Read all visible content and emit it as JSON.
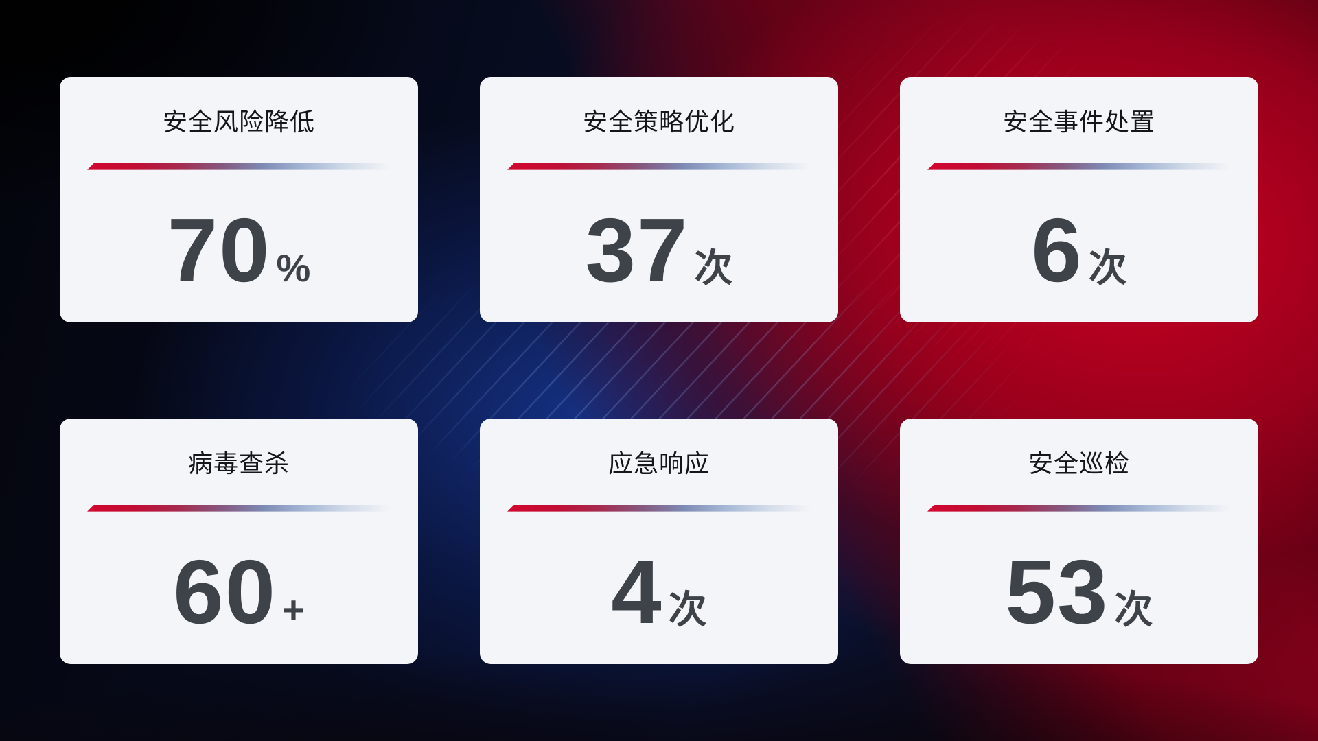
{
  "cards": [
    {
      "title": "安全风险降低",
      "value": "70",
      "unit": "%"
    },
    {
      "title": "安全策略优化",
      "value": "37",
      "unit": "次"
    },
    {
      "title": "安全事件处置",
      "value": "6",
      "unit": "次"
    },
    {
      "title": "病毒查杀",
      "value": "60",
      "unit": "+"
    },
    {
      "title": "应急响应",
      "value": "4",
      "unit": "次"
    },
    {
      "title": "安全巡检",
      "value": "53",
      "unit": "次"
    }
  ],
  "colors": {
    "accent_red": "#d2062e",
    "accent_blue_gray": "#9fb3d4",
    "card_bg": "#f4f5f8",
    "title_text": "#15161a",
    "number_text": "#3e4249",
    "bg_navy": "#0a1334",
    "bg_red": "#c00022"
  }
}
